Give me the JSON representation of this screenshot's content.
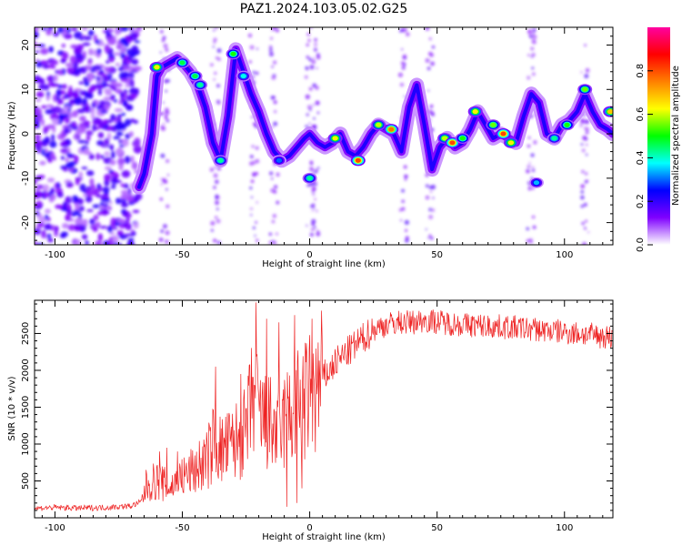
{
  "figure_title": "PAZ1.2024.103.05.02.G25",
  "chart_data": [
    {
      "type": "heatmap",
      "title": "PAZ1.2024.103.05.02.G25",
      "xlabel": "Height of straight line (km)",
      "ylabel": "Frequency (Hz)",
      "xlim": [
        -108,
        119
      ],
      "ylim": [
        -25,
        24
      ],
      "xticks": [
        -100,
        -50,
        0,
        50,
        100
      ],
      "yticks": [
        -20,
        -10,
        0,
        10,
        20
      ],
      "grid": false,
      "colorbar": {
        "label": "Normalized spectral amplitude",
        "range": [
          0.0,
          1.0
        ],
        "ticks": [
          0.0,
          0.2,
          0.4,
          0.6,
          0.8
        ],
        "colormap": [
          "#ffffff",
          "#7f00ff",
          "#0000ff",
          "#00ffff",
          "#00ff00",
          "#ffff00",
          "#ff8000",
          "#ff0000",
          "#ff00a0"
        ]
      },
      "noise_region_x": [
        -108,
        -67
      ],
      "ridge": {
        "x": [
          -67,
          -65,
          -62,
          -60,
          -58,
          -55,
          -52,
          -50,
          -47,
          -44,
          -41,
          -38,
          -35,
          -32,
          -29,
          -26,
          -23,
          -20,
          -17,
          -14,
          -11,
          -8,
          -5,
          -2,
          0,
          3,
          6,
          9,
          12,
          15,
          18,
          21,
          24,
          27,
          30,
          33,
          36,
          39,
          42,
          45,
          48,
          51,
          54,
          57,
          60,
          63,
          66,
          69,
          72,
          75,
          78,
          81,
          84,
          87,
          90,
          93,
          96,
          99,
          102,
          105,
          108,
          111,
          114,
          117,
          119
        ],
        "y": [
          -12,
          -9,
          0,
          13,
          15,
          16,
          17,
          16,
          14,
          11,
          6,
          -2,
          -6,
          4,
          19,
          14,
          9,
          5,
          0,
          -4,
          -6,
          -5,
          -3,
          -1,
          0,
          -2,
          -3,
          -2,
          0,
          -4,
          -5,
          -3,
          0,
          2,
          1,
          0,
          -4,
          6,
          11,
          2,
          -8,
          -3,
          -1,
          -3,
          -2,
          1,
          5,
          2,
          -1,
          0,
          -1,
          -2,
          4,
          9,
          7,
          0,
          -1,
          2,
          3,
          5,
          9,
          5,
          2,
          1,
          0
        ]
      },
      "peaks": [
        {
          "x": -60,
          "y": 15,
          "amp": 0.75
        },
        {
          "x": -50,
          "y": 16,
          "amp": 0.55
        },
        {
          "x": -45,
          "y": 13,
          "amp": 0.55
        },
        {
          "x": -43,
          "y": 11,
          "amp": 0.5
        },
        {
          "x": -30,
          "y": 18,
          "amp": 0.6
        },
        {
          "x": -26,
          "y": 13,
          "amp": 0.45
        },
        {
          "x": -35,
          "y": -6,
          "amp": 0.5
        },
        {
          "x": -12,
          "y": -6,
          "amp": 0.35
        },
        {
          "x": 0,
          "y": -10,
          "amp": 0.5
        },
        {
          "x": 10,
          "y": -1,
          "amp": 0.75
        },
        {
          "x": 19,
          "y": -6,
          "amp": 0.95
        },
        {
          "x": 27,
          "y": 2,
          "amp": 0.7
        },
        {
          "x": 32,
          "y": 1,
          "amp": 0.9
        },
        {
          "x": 53,
          "y": -1,
          "amp": 0.7
        },
        {
          "x": 56,
          "y": -2,
          "amp": 0.95
        },
        {
          "x": 60,
          "y": -1,
          "amp": 0.6
        },
        {
          "x": 65,
          "y": 5,
          "amp": 0.75
        },
        {
          "x": 72,
          "y": 2,
          "amp": 0.65
        },
        {
          "x": 76,
          "y": 0,
          "amp": 0.95
        },
        {
          "x": 79,
          "y": -2,
          "amp": 0.75
        },
        {
          "x": 89,
          "y": -11,
          "amp": 0.4
        },
        {
          "x": 96,
          "y": -1,
          "amp": 0.5
        },
        {
          "x": 101,
          "y": 2,
          "amp": 0.6
        },
        {
          "x": 108,
          "y": 10,
          "amp": 0.65
        },
        {
          "x": 118,
          "y": 5,
          "amp": 0.8
        }
      ]
    },
    {
      "type": "line",
      "xlabel": "Height of straight line (km)",
      "ylabel": "SNR (10 * v/v)",
      "xlim": [
        -108,
        119
      ],
      "ylim": [
        0,
        2950
      ],
      "xticks": [
        -100,
        -50,
        0,
        50,
        100
      ],
      "yticks": [
        500,
        1000,
        1500,
        2000,
        2500
      ],
      "grid": false,
      "color": "#ee2222",
      "series": [
        {
          "x": [
            -108,
            -100,
            -90,
            -80,
            -70,
            -66,
            -64,
            -60,
            -57,
            -55,
            -50,
            -45,
            -40,
            -37,
            -35,
            -30,
            -25,
            -22,
            -20,
            -18,
            -15,
            -12,
            -10,
            -7,
            -5,
            -2,
            0,
            3,
            5,
            8,
            10,
            15,
            20,
            25,
            30,
            35,
            40,
            45,
            50,
            55,
            60,
            70,
            80,
            90,
            100,
            110,
            119
          ],
          "values": [
            130,
            140,
            130,
            140,
            160,
            220,
            450,
            500,
            450,
            400,
            550,
            650,
            800,
            1100,
            900,
            1000,
            1150,
            1700,
            1400,
            1300,
            1250,
            1100,
            1300,
            1400,
            1500,
            1550,
            1650,
            1700,
            1900,
            2000,
            2100,
            2250,
            2400,
            2550,
            2620,
            2650,
            2650,
            2680,
            2660,
            2640,
            2620,
            2600,
            2580,
            2550,
            2520,
            2480,
            2450
          ]
        }
      ],
      "spikes": [
        {
          "x": -59,
          "value": 900
        },
        {
          "x": -56,
          "value": 950
        },
        {
          "x": -52,
          "value": 900
        },
        {
          "x": -37,
          "value": 2050
        },
        {
          "x": -27,
          "value": 1950
        },
        {
          "x": -21,
          "value": 2920
        },
        {
          "x": -17,
          "value": 2700
        },
        {
          "x": -12,
          "value": 2650
        },
        {
          "x": -6,
          "value": 2750
        },
        {
          "x": -5,
          "value": 200
        },
        {
          "x": 1,
          "value": 2700
        },
        {
          "x": -9,
          "value": 150
        },
        {
          "x": -3,
          "value": 400
        }
      ]
    }
  ]
}
